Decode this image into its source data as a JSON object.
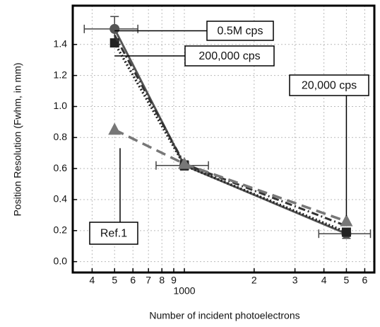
{
  "chart_data": {
    "type": "line",
    "xlabel": "Number of incident photoelectrons",
    "ylabel": "Position Resolution (Fwhm, in mm)",
    "xlog": true,
    "grid": true,
    "x": [
      500,
      1000,
      5000
    ],
    "xlim": [
      330,
      6600
    ],
    "xticks": [
      {
        "value": 400,
        "label": "4"
      },
      {
        "value": 500,
        "label": "5"
      },
      {
        "value": 600,
        "label": "6"
      },
      {
        "value": 700,
        "label": "7"
      },
      {
        "value": 800,
        "label": "8"
      },
      {
        "value": 900,
        "label": "9"
      },
      1000,
      {
        "value": 2000,
        "label": "2"
      },
      {
        "value": 3000,
        "label": "3"
      },
      {
        "value": 4000,
        "label": "4"
      },
      {
        "value": 5000,
        "label": "5"
      },
      {
        "value": 6000,
        "label": "6"
      }
    ],
    "ylim": [
      -0.07,
      1.65
    ],
    "yticks": [
      {
        "value": 0,
        "label": "0.0"
      },
      0.2,
      0.4,
      0.6,
      0.8,
      {
        "value": 1,
        "label": "1.0"
      },
      1.2,
      1.4
    ],
    "series": [
      {
        "name": "0.5M cps",
        "color": "#555555",
        "dash": "solid",
        "marker": "circle",
        "values": [
          1.5,
          0.62,
          0.18
        ],
        "x_low": [
          370,
          755,
          3800
        ],
        "x_high": [
          630,
          1270,
          6350
        ],
        "yerr": [
          0.08,
          0.03,
          0.03
        ]
      },
      {
        "name": "200,000 cps",
        "color": "#222222",
        "dash": "dotted",
        "marker": "square",
        "values": [
          1.41,
          0.62,
          0.19
        ]
      },
      {
        "name": "20,000 cps",
        "color": "#333333",
        "dash": "dashdot",
        "marker": "none",
        "values": [
          1.46,
          0.63,
          0.23
        ]
      },
      {
        "name": "Ref.1",
        "color": "#777777",
        "dash": "dashed",
        "marker": "triangle",
        "values": [
          0.85,
          0.63,
          0.26
        ]
      }
    ]
  }
}
